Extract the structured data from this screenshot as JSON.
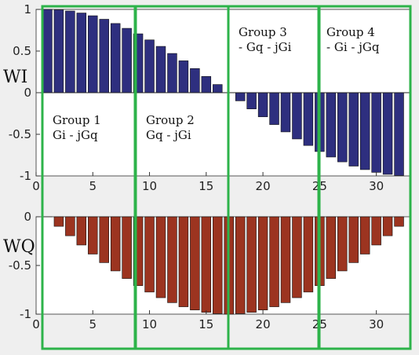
{
  "chart_data": [
    {
      "type": "bar",
      "title": "",
      "xlabel": "",
      "ylabel": "WI",
      "xlim": [
        0,
        33
      ],
      "ylim": [
        -1,
        1
      ],
      "xticks": [
        "0",
        "5",
        "10",
        "15",
        "20",
        "25",
        "30"
      ],
      "yticks": [
        "1",
        "0.5",
        "0",
        "-0.5",
        "-1"
      ],
      "color": "#2e2f7f",
      "x": [
        1,
        2,
        3,
        4,
        5,
        6,
        7,
        8,
        9,
        10,
        11,
        12,
        13,
        14,
        15,
        16,
        17,
        18,
        19,
        20,
        21,
        22,
        23,
        24,
        25,
        26,
        27,
        28,
        29,
        30,
        31,
        32
      ],
      "values": [
        1.0,
        0.995,
        0.981,
        0.957,
        0.924,
        0.882,
        0.831,
        0.773,
        0.707,
        0.634,
        0.556,
        0.471,
        0.383,
        0.29,
        0.195,
        0.098,
        0.0,
        -0.098,
        -0.195,
        -0.29,
        -0.383,
        -0.471,
        -0.556,
        -0.634,
        -0.707,
        -0.773,
        -0.831,
        -0.882,
        -0.924,
        -0.957,
        -0.981,
        -0.995
      ],
      "annotations": [
        {
          "text": [
            "Group 1",
            "Gi - jGq"
          ]
        },
        {
          "text": [
            "Group 2",
            "Gq - jGi"
          ]
        },
        {
          "text": [
            "Group 3",
            "- Gq - jGi"
          ]
        },
        {
          "text": [
            "Group 4",
            "- Gi - jGq"
          ]
        }
      ]
    },
    {
      "type": "bar",
      "title": "",
      "xlabel": "",
      "ylabel": "WQ",
      "xlim": [
        0,
        33
      ],
      "ylim": [
        -1,
        0
      ],
      "xticks": [
        "0",
        "5",
        "10",
        "15",
        "20",
        "25",
        "30"
      ],
      "yticks": [
        "0",
        "-0.5",
        "-1"
      ],
      "color": "#9c3420",
      "x": [
        1,
        2,
        3,
        4,
        5,
        6,
        7,
        8,
        9,
        10,
        11,
        12,
        13,
        14,
        15,
        16,
        17,
        18,
        19,
        20,
        21,
        22,
        23,
        24,
        25,
        26,
        27,
        28,
        29,
        30,
        31,
        32
      ],
      "values": [
        0.0,
        -0.098,
        -0.195,
        -0.29,
        -0.383,
        -0.471,
        -0.556,
        -0.634,
        -0.707,
        -0.773,
        -0.831,
        -0.882,
        -0.924,
        -0.957,
        -0.981,
        -0.995,
        -1.0,
        -0.995,
        -0.981,
        -0.957,
        -0.924,
        -0.882,
        -0.831,
        -0.773,
        -0.707,
        -0.634,
        -0.556,
        -0.471,
        -0.383,
        -0.29,
        -0.195,
        -0.098
      ]
    }
  ],
  "highlight_color": "#2db34a"
}
